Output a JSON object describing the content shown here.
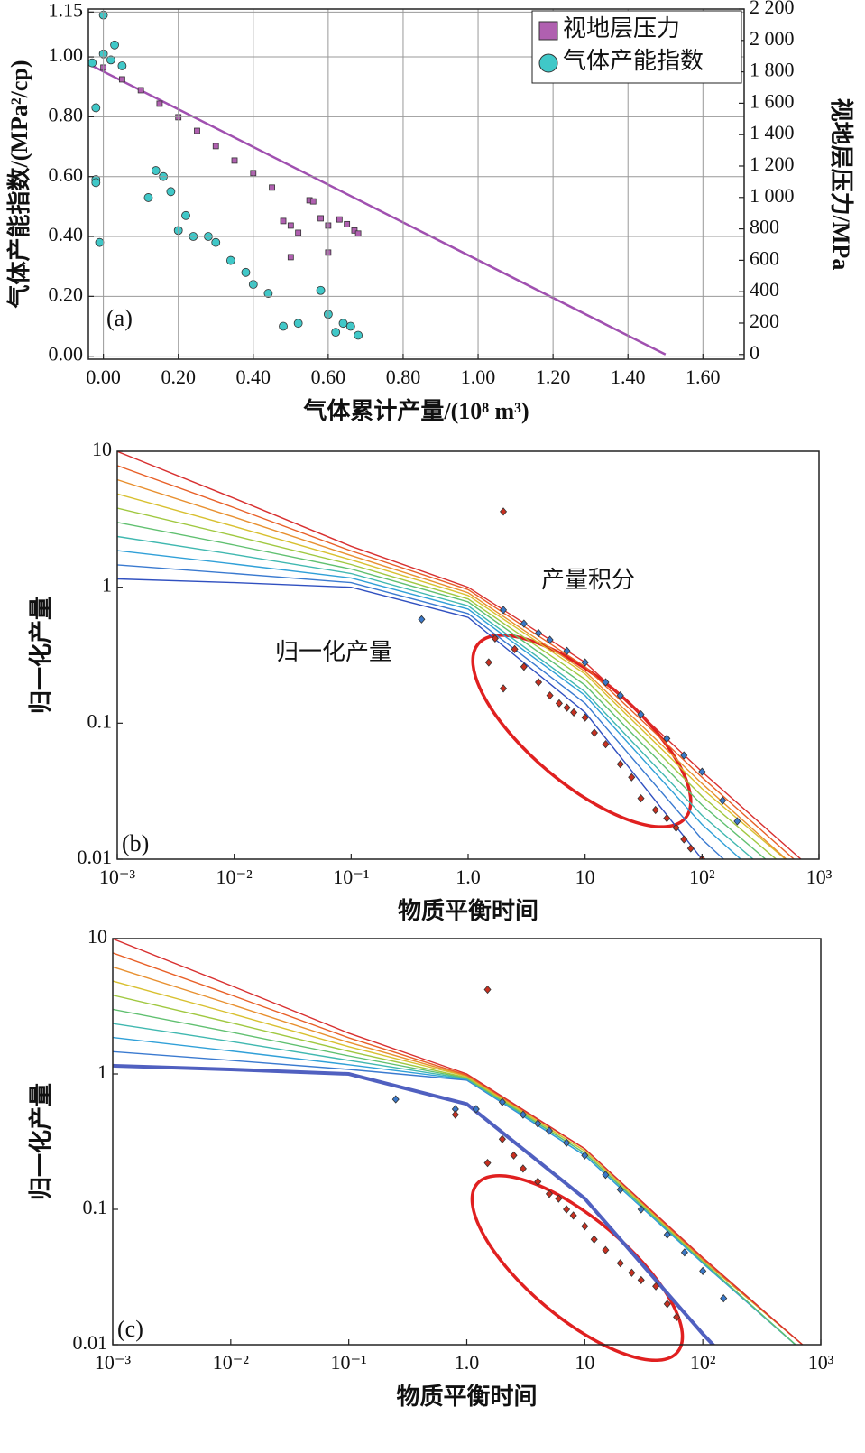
{
  "chart_data": [
    {
      "type": "scatter",
      "grid": true,
      "legend": "top-right",
      "xlabel": "气体累计产量/(10⁸ m³)",
      "ylabel": "气体产能指数/(MPa²/cp)",
      "y2label": "视地层压力/MPa",
      "annotations": [
        "(a)"
      ],
      "xlim": [
        -0.04,
        1.71
      ],
      "ylim": [
        -0.01,
        1.16
      ],
      "y2lim": [
        -30,
        2200
      ],
      "xticks": [
        {
          "value": 0,
          "label": "0.00"
        },
        {
          "value": 0.2,
          "label": "0.20"
        },
        {
          "value": 0.4,
          "label": "0.40"
        },
        {
          "value": 0.6,
          "label": "0.60"
        },
        {
          "value": 0.8,
          "label": "0.80"
        },
        {
          "value": 1,
          "label": "1.00"
        },
        {
          "value": 1.2,
          "label": "1.20"
        },
        {
          "value": 1.4,
          "label": "1.40"
        },
        {
          "value": 1.6,
          "label": "1.60"
        }
      ],
      "yticks": [
        {
          "value": 0,
          "label": "0.00"
        },
        {
          "value": 0.2,
          "label": "0.20"
        },
        {
          "value": 0.4,
          "label": "0.40"
        },
        {
          "value": 0.6,
          "label": "0.60"
        },
        {
          "value": 0.8,
          "label": "0.80"
        },
        {
          "value": 1,
          "label": "1.00"
        },
        {
          "value": 1.15,
          "label": "1.15"
        }
      ],
      "y2ticks": [
        0,
        200,
        400,
        600,
        800,
        {
          "value": 1000,
          "label": "1 000"
        },
        {
          "value": 1200,
          "label": "1 200"
        },
        {
          "value": 1400,
          "label": "1 400"
        },
        {
          "value": 1600,
          "label": "1 600"
        },
        {
          "value": 1800,
          "label": "1 800"
        },
        {
          "value": 2000,
          "label": "2 000"
        },
        {
          "value": 2200,
          "label": "2 200"
        }
      ],
      "series": [
        {
          "marker": "line",
          "axis": "y2",
          "color": "#a050b0",
          "width": 2.5,
          "x": [
            -0.04,
            1.5
          ],
          "values": [
            1850,
            0
          ]
        },
        {
          "name": "视地层压力",
          "marker": "square",
          "axis": "y2",
          "color": "#b060b0",
          "x": [
            0.0,
            0.05,
            0.1,
            0.15,
            0.2,
            0.25,
            0.3,
            0.35,
            0.4,
            0.45,
            0.48,
            0.5,
            0.5,
            0.52,
            0.55,
            0.56,
            0.58,
            0.6,
            0.6,
            0.63,
            0.65,
            0.67,
            0.68
          ],
          "values": [
            1827,
            1752,
            1683,
            1597,
            1511,
            1424,
            1327,
            1235,
            1155,
            1063,
            850,
            821,
            620,
            775,
            982,
            975,
            867,
            821,
            649,
            860,
            830,
            790,
            770
          ]
        },
        {
          "name": "气体产能指数",
          "marker": "circle",
          "color": "#40c8c8",
          "x": [
            -0.03,
            -0.02,
            -0.02,
            -0.02,
            -0.01,
            0.0,
            0.0,
            0.02,
            0.03,
            0.05,
            0.12,
            0.14,
            0.16,
            0.18,
            0.2,
            0.22,
            0.24,
            0.28,
            0.3,
            0.34,
            0.38,
            0.4,
            0.44,
            0.48,
            0.52,
            0.58,
            0.6,
            0.62,
            0.64,
            0.66,
            0.68
          ],
          "values": [
            0.98,
            0.83,
            0.59,
            0.58,
            0.38,
            1.14,
            1.01,
            0.99,
            1.04,
            0.97,
            0.53,
            0.62,
            0.6,
            0.55,
            0.42,
            0.47,
            0.4,
            0.4,
            0.38,
            0.32,
            0.28,
            0.24,
            0.21,
            0.1,
            0.11,
            0.22,
            0.14,
            0.08,
            0.11,
            0.1,
            0.07
          ]
        }
      ]
    },
    {
      "type": "line",
      "xscale": "log",
      "yscale": "log",
      "grid": false,
      "xlabel": "物质平衡时间",
      "ylabel": "归一化产量",
      "annotations": [
        "产量积分",
        "归一化产量",
        "(b)"
      ],
      "xlim": [
        0.001,
        1000
      ],
      "ylim": [
        0.01,
        10
      ],
      "xticks": [
        {
          "value": 0.001,
          "label": "10⁻³"
        },
        {
          "value": 0.01,
          "label": "10⁻²"
        },
        {
          "value": 0.1,
          "label": "10⁻¹"
        },
        {
          "value": 1,
          "label": "1.0"
        },
        10,
        {
          "value": 100,
          "label": "10²"
        },
        {
          "value": 1000,
          "label": "10³"
        }
      ],
      "yticks": [
        0.01,
        0.1,
        1,
        10
      ],
      "x": [
        0.001,
        0.01,
        0.1,
        1,
        10,
        100,
        700
      ],
      "series": [
        {
          "marker": "line",
          "color": "#3050c0",
          "values": [
            1.15,
            1.08,
            1.0,
            0.6,
            0.12,
            0.01,
            0.002
          ]
        },
        {
          "marker": "line",
          "color": "#3a7ad0",
          "values": [
            1.46,
            1.26,
            1.08,
            0.64,
            0.14,
            0.014,
            0.003
          ]
        },
        {
          "marker": "line",
          "color": "#30a0d8",
          "values": [
            1.86,
            1.48,
            1.17,
            0.69,
            0.16,
            0.018,
            0.004
          ]
        },
        {
          "marker": "line",
          "color": "#40b8b0",
          "values": [
            2.36,
            1.74,
            1.26,
            0.73,
            0.17,
            0.021,
            0.005
          ]
        },
        {
          "marker": "line",
          "color": "#60c070",
          "values": [
            3.0,
            2.04,
            1.36,
            0.78,
            0.19,
            0.025,
            0.006
          ]
        },
        {
          "marker": "line",
          "color": "#a0c840",
          "values": [
            3.82,
            2.39,
            1.47,
            0.82,
            0.21,
            0.029,
            0.007
          ]
        },
        {
          "marker": "line",
          "color": "#d8c030",
          "values": [
            4.85,
            2.8,
            1.59,
            0.87,
            0.23,
            0.033,
            0.008
          ]
        },
        {
          "marker": "line",
          "color": "#e89030",
          "values": [
            6.18,
            3.27,
            1.71,
            0.91,
            0.24,
            0.036,
            0.008
          ]
        },
        {
          "marker": "line",
          "color": "#e86028",
          "values": [
            7.84,
            3.84,
            1.85,
            0.96,
            0.26,
            0.04,
            0.009
          ]
        },
        {
          "marker": "line",
          "color": "#d83030",
          "values": [
            9.97,
            4.5,
            2.0,
            1.0,
            0.28,
            0.044,
            0.01
          ]
        },
        {
          "marker": "diamond",
          "color": "#3a78c8",
          "x": [
            0.4,
            2,
            3,
            4,
            5,
            7,
            10,
            15,
            20,
            30,
            50,
            70,
            100,
            150,
            200
          ],
          "values": [
            0.58,
            0.68,
            0.54,
            0.46,
            0.41,
            0.34,
            0.28,
            0.2,
            0.16,
            0.116,
            0.077,
            0.058,
            0.044,
            0.027,
            0.019
          ]
        },
        {
          "marker": "diamond",
          "color": "#c83020",
          "x": [
            2,
            1.5,
            1.7,
            2,
            2.5,
            3,
            4,
            5,
            6,
            7,
            8,
            10,
            12,
            15,
            20,
            25,
            30,
            40,
            50,
            60,
            70,
            80,
            100
          ],
          "values": [
            3.6,
            0.28,
            0.42,
            0.18,
            0.35,
            0.26,
            0.2,
            0.16,
            0.14,
            0.13,
            0.12,
            0.11,
            0.085,
            0.07,
            0.05,
            0.04,
            0.028,
            0.023,
            0.02,
            0.017,
            0.014,
            0.012,
            0.01
          ]
        }
      ]
    },
    {
      "type": "line",
      "xscale": "log",
      "yscale": "log",
      "grid": false,
      "xlabel": "物质平衡时间",
      "ylabel": "归一化产量",
      "annotations": [
        "(c)"
      ],
      "xlim": [
        0.001,
        1000
      ],
      "ylim": [
        0.01,
        10
      ],
      "xticks": [
        {
          "value": 0.001,
          "label": "10⁻³"
        },
        {
          "value": 0.01,
          "label": "10⁻²"
        },
        {
          "value": 0.1,
          "label": "10⁻¹"
        },
        {
          "value": 1,
          "label": "1.0"
        },
        10,
        {
          "value": 100,
          "label": "10²"
        },
        {
          "value": 1000,
          "label": "10³"
        }
      ],
      "yticks": [
        0.01,
        0.1,
        1,
        10
      ],
      "x": [
        0.001,
        0.01,
        0.1,
        1,
        10,
        100,
        700
      ],
      "series": [
        {
          "marker": "line",
          "color": "#3a7ad0",
          "values": [
            1.46,
            1.26,
            1.08,
            0.9,
            0.25,
            0.04,
            0.009
          ]
        },
        {
          "marker": "line",
          "color": "#30a0d8",
          "values": [
            1.86,
            1.48,
            1.17,
            0.91,
            0.25,
            0.04,
            0.009
          ]
        },
        {
          "marker": "line",
          "color": "#40b8b0",
          "values": [
            2.36,
            1.74,
            1.26,
            0.92,
            0.26,
            0.041,
            0.009
          ]
        },
        {
          "marker": "line",
          "color": "#60c070",
          "values": [
            3.0,
            2.04,
            1.36,
            0.93,
            0.26,
            0.041,
            0.009
          ]
        },
        {
          "marker": "line",
          "color": "#a0c840",
          "values": [
            3.82,
            2.39,
            1.47,
            0.94,
            0.27,
            0.042,
            0.01
          ]
        },
        {
          "marker": "line",
          "color": "#d8c030",
          "values": [
            4.85,
            2.8,
            1.59,
            0.96,
            0.27,
            0.042,
            0.01
          ]
        },
        {
          "marker": "line",
          "color": "#e89030",
          "values": [
            6.18,
            3.27,
            1.71,
            0.97,
            0.28,
            0.043,
            0.01
          ]
        },
        {
          "marker": "line",
          "color": "#e86028",
          "values": [
            7.84,
            3.84,
            1.85,
            0.98,
            0.28,
            0.043,
            0.01
          ]
        },
        {
          "marker": "line",
          "color": "#d83030",
          "values": [
            9.97,
            4.5,
            2.0,
            1.0,
            0.28,
            0.044,
            0.01
          ]
        },
        {
          "marker": "line",
          "color": "#5060c0",
          "width": 4,
          "values": [
            1.15,
            1.08,
            1.0,
            0.6,
            0.12,
            0.012,
            0.002
          ]
        },
        {
          "marker": "diamond",
          "color": "#3a78c8",
          "x": [
            0.25,
            0.8,
            1.2,
            2,
            3,
            4,
            5,
            7,
            10,
            15,
            20,
            30,
            50,
            70,
            100,
            150
          ],
          "values": [
            0.65,
            0.55,
            0.55,
            0.62,
            0.5,
            0.43,
            0.38,
            0.31,
            0.25,
            0.18,
            0.14,
            0.1,
            0.065,
            0.048,
            0.035,
            0.022
          ]
        },
        {
          "marker": "diamond",
          "color": "#c83020",
          "x": [
            1.5,
            0.8,
            1.5,
            2,
            2.5,
            3,
            4,
            5,
            6,
            7,
            8,
            10,
            12,
            15,
            20,
            25,
            30,
            40,
            50,
            60
          ],
          "values": [
            4.2,
            0.5,
            0.22,
            0.33,
            0.25,
            0.2,
            0.16,
            0.13,
            0.12,
            0.1,
            0.09,
            0.075,
            0.06,
            0.05,
            0.04,
            0.034,
            0.03,
            0.027,
            0.02,
            0.016
          ]
        }
      ]
    }
  ]
}
